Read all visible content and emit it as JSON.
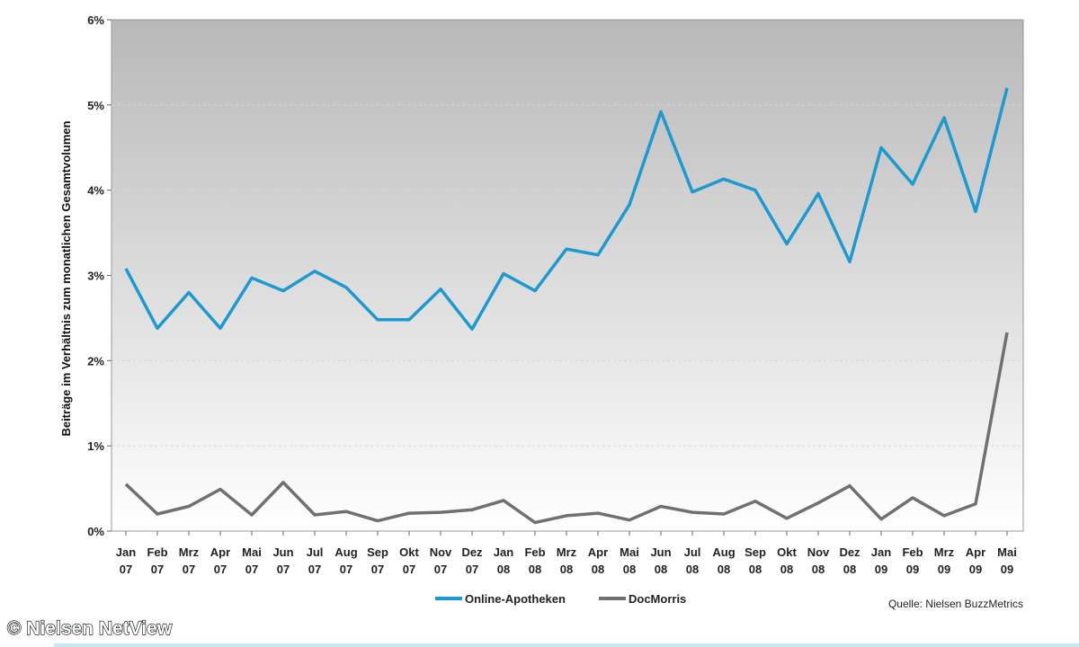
{
  "chart_data": {
    "type": "line",
    "categories": [
      "Jan|07",
      "Feb|07",
      "Mrz|07",
      "Apr|07",
      "Mai|07",
      "Jun|07",
      "Jul|07",
      "Aug|07",
      "Sep|07",
      "Okt|07",
      "Nov|07",
      "Dez|07",
      "Jan|08",
      "Feb|08",
      "Mrz|08",
      "Apr|08",
      "Mai|08",
      "Jun|08",
      "Jul|08",
      "Aug|08",
      "Sep|08",
      "Okt|08",
      "Nov|08",
      "Dez|08",
      "Jan|09",
      "Feb|09",
      "Mrz|09",
      "Apr|09",
      "Mai|09"
    ],
    "series": [
      {
        "name": "Online-Apotheken",
        "color": "#1a9ad0",
        "values": [
          3.08,
          2.38,
          2.8,
          2.38,
          2.97,
          2.82,
          3.05,
          2.86,
          2.48,
          2.48,
          2.84,
          2.37,
          3.02,
          2.82,
          3.31,
          3.24,
          3.83,
          4.92,
          3.98,
          4.13,
          4.0,
          3.37,
          3.96,
          3.16,
          4.5,
          4.07,
          4.85,
          3.75,
          5.2
        ]
      },
      {
        "name": "DocMorris",
        "color": "#707070",
        "values": [
          0.55,
          0.2,
          0.29,
          0.49,
          0.19,
          0.57,
          0.19,
          0.23,
          0.12,
          0.21,
          0.22,
          0.25,
          0.36,
          0.1,
          0.18,
          0.21,
          0.13,
          0.29,
          0.22,
          0.2,
          0.35,
          0.15,
          0.33,
          0.53,
          0.14,
          0.39,
          0.18,
          0.32,
          2.33
        ]
      }
    ],
    "ylabel": "Beiträge im Verhältnis zum monatlichen Gesamtvolumen",
    "yticks": [
      "0%",
      "1%",
      "2%",
      "3%",
      "4%",
      "5%",
      "6%"
    ],
    "ylim": [
      0,
      6
    ],
    "grid": true,
    "legend_position": "bottom"
  },
  "source": "Quelle: Nielsen BuzzMetrics",
  "watermark": "© Nielsen NetView"
}
